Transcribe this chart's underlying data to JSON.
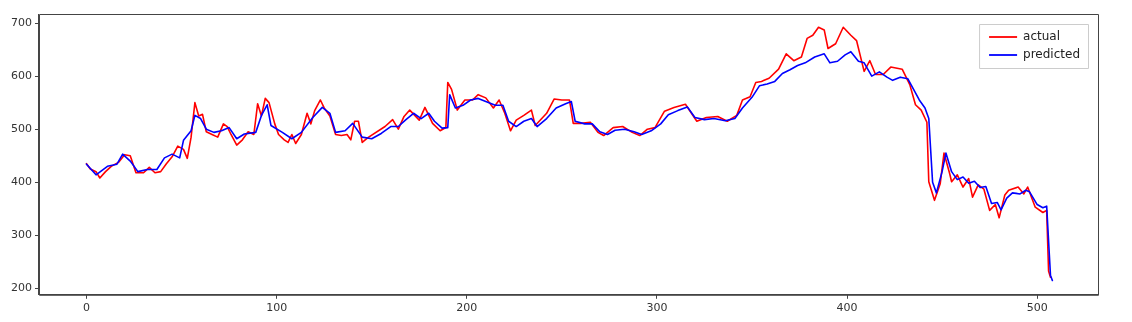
{
  "chart_data": {
    "type": "line",
    "xlim": [
      -25,
      532
    ],
    "xticks": [
      0,
      100,
      200,
      300,
      400,
      500
    ],
    "ylim": [
      188,
      717
    ],
    "yticks": [
      200,
      300,
      400,
      500,
      600,
      700
    ],
    "grid": false,
    "legend": "top right",
    "marker": "none",
    "line_style": "solid",
    "series": [
      {
        "name": "actual",
        "color": "#ff0000",
        "x": [
          0,
          2,
          5,
          7,
          10,
          13,
          17,
          20,
          23,
          26,
          30,
          33,
          36,
          39,
          42,
          45,
          48,
          51,
          53,
          55,
          57,
          59,
          61,
          63,
          66,
          69,
          72,
          74,
          76,
          79,
          82,
          85,
          88,
          90,
          92,
          94,
          96,
          99,
          101,
          104,
          106,
          108,
          110,
          113,
          116,
          118,
          120,
          123,
          125,
          128,
          131,
          134,
          137,
          139,
          141,
          143,
          145,
          148,
          157,
          161,
          164,
          167,
          170,
          175,
          178,
          182,
          186,
          189,
          190,
          192,
          195,
          199,
          203,
          206,
          210,
          214,
          217,
          220,
          223,
          226,
          230,
          234,
          236,
          242,
          246,
          250,
          254,
          256,
          260,
          265,
          269,
          272,
          277,
          282,
          287,
          291,
          295,
          299,
          304,
          309,
          315,
          321,
          326,
          332,
          337,
          342,
          345,
          349,
          352,
          355,
          359,
          364,
          368,
          372,
          376,
          379,
          382,
          385,
          388,
          390,
          394,
          398,
          402,
          405,
          409,
          412,
          415,
          419,
          423,
          429,
          433,
          436,
          439,
          442,
          443,
          446,
          449,
          451,
          454,
          455,
          458,
          461,
          464,
          466,
          469,
          472,
          475,
          478,
          480,
          483,
          485,
          490,
          493,
          495,
          499,
          503,
          505,
          506,
          507
        ],
        "values": [
          435,
          425,
          420,
          408,
          420,
          430,
          438,
          452,
          450,
          418,
          418,
          428,
          418,
          420,
          435,
          448,
          468,
          462,
          445,
          485,
          550,
          525,
          528,
          495,
          490,
          485,
          510,
          505,
          490,
          470,
          480,
          495,
          490,
          548,
          525,
          558,
          550,
          510,
          490,
          480,
          475,
          490,
          473,
          490,
          530,
          510,
          535,
          555,
          540,
          525,
          490,
          488,
          490,
          480,
          515,
          515,
          475,
          484,
          505,
          518,
          500,
          524,
          536,
          517,
          541,
          511,
          497,
          503,
          588,
          575,
          536,
          555,
          555,
          565,
          559,
          540,
          555,
          530,
          497,
          517,
          526,
          536,
          507,
          530,
          557,
          555,
          555,
          511,
          511,
          513,
          494,
          488,
          503,
          505,
          494,
          488,
          500,
          503,
          534,
          541,
          547,
          515,
          522,
          524,
          515,
          526,
          555,
          561,
          588,
          590,
          596,
          613,
          642,
          629,
          636,
          671,
          677,
          692,
          687,
          652,
          661,
          692,
          677,
          667,
          609,
          629,
          603,
          603,
          617,
          613,
          584,
          546,
          536,
          513,
          401,
          366,
          397,
          455,
          416,
          401,
          414,
          391,
          407,
          372,
          395,
          387,
          347,
          358,
          333,
          376,
          385,
          391,
          378,
          391,
          353,
          343,
          347,
          233,
          221
        ]
      },
      {
        "name": "predicted",
        "color": "#0000ff",
        "x": [
          0,
          5,
          11,
          16,
          19,
          23,
          27,
          32,
          37,
          41,
          45,
          49,
          51,
          55,
          57,
          60,
          63,
          67,
          71,
          75,
          79,
          83,
          89,
          92,
          95,
          97,
          103,
          108,
          113,
          119,
          124,
          128,
          131,
          136,
          140,
          145,
          150,
          155,
          160,
          164,
          168,
          172,
          176,
          180,
          183,
          187,
          190,
          191,
          194,
          198,
          202,
          206,
          210,
          215,
          219,
          222,
          226,
          230,
          234,
          237,
          242,
          247,
          252,
          255,
          257,
          262,
          266,
          270,
          274,
          278,
          283,
          288,
          292,
          297,
          302,
          306,
          311,
          316,
          320,
          325,
          330,
          336,
          341,
          345,
          350,
          354,
          358,
          362,
          366,
          370,
          374,
          378,
          383,
          388,
          391,
          395,
          399,
          402,
          406,
          409,
          413,
          417,
          421,
          424,
          428,
          432,
          435,
          438,
          441,
          443,
          445,
          447,
          450,
          452,
          455,
          458,
          461,
          464,
          467,
          470,
          473,
          476,
          479,
          481,
          484,
          487,
          491,
          494,
          496,
          500,
          503,
          505,
          507,
          508
        ],
        "values": [
          434,
          414,
          430,
          434,
          453,
          440,
          420,
          424,
          424,
          446,
          453,
          446,
          479,
          497,
          526,
          520,
          500,
          494,
          497,
          503,
          482,
          491,
          494,
          526,
          546,
          507,
          494,
          482,
          494,
          522,
          541,
          530,
          494,
          497,
          511,
          485,
          482,
          492,
          505,
          505,
          518,
          530,
          520,
          530,
          515,
          502,
          503,
          565,
          540,
          545,
          555,
          558,
          552,
          545,
          545,
          515,
          505,
          515,
          520,
          505,
          520,
          540,
          548,
          552,
          515,
          510,
          510,
          495,
          490,
          498,
          500,
          495,
          490,
          497,
          510,
          527,
          535,
          542,
          522,
          518,
          520,
          516,
          520,
          540,
          560,
          582,
          585,
          590,
          605,
          612,
          620,
          625,
          636,
          642,
          625,
          628,
          640,
          646,
          628,
          625,
          600,
          608,
          598,
          592,
          598,
          595,
          575,
          555,
          540,
          520,
          400,
          380,
          420,
          455,
          420,
          405,
          410,
          398,
          402,
          390,
          392,
          360,
          362,
          348,
          370,
          380,
          378,
          385,
          382,
          358,
          352,
          355,
          225,
          215
        ]
      }
    ]
  }
}
